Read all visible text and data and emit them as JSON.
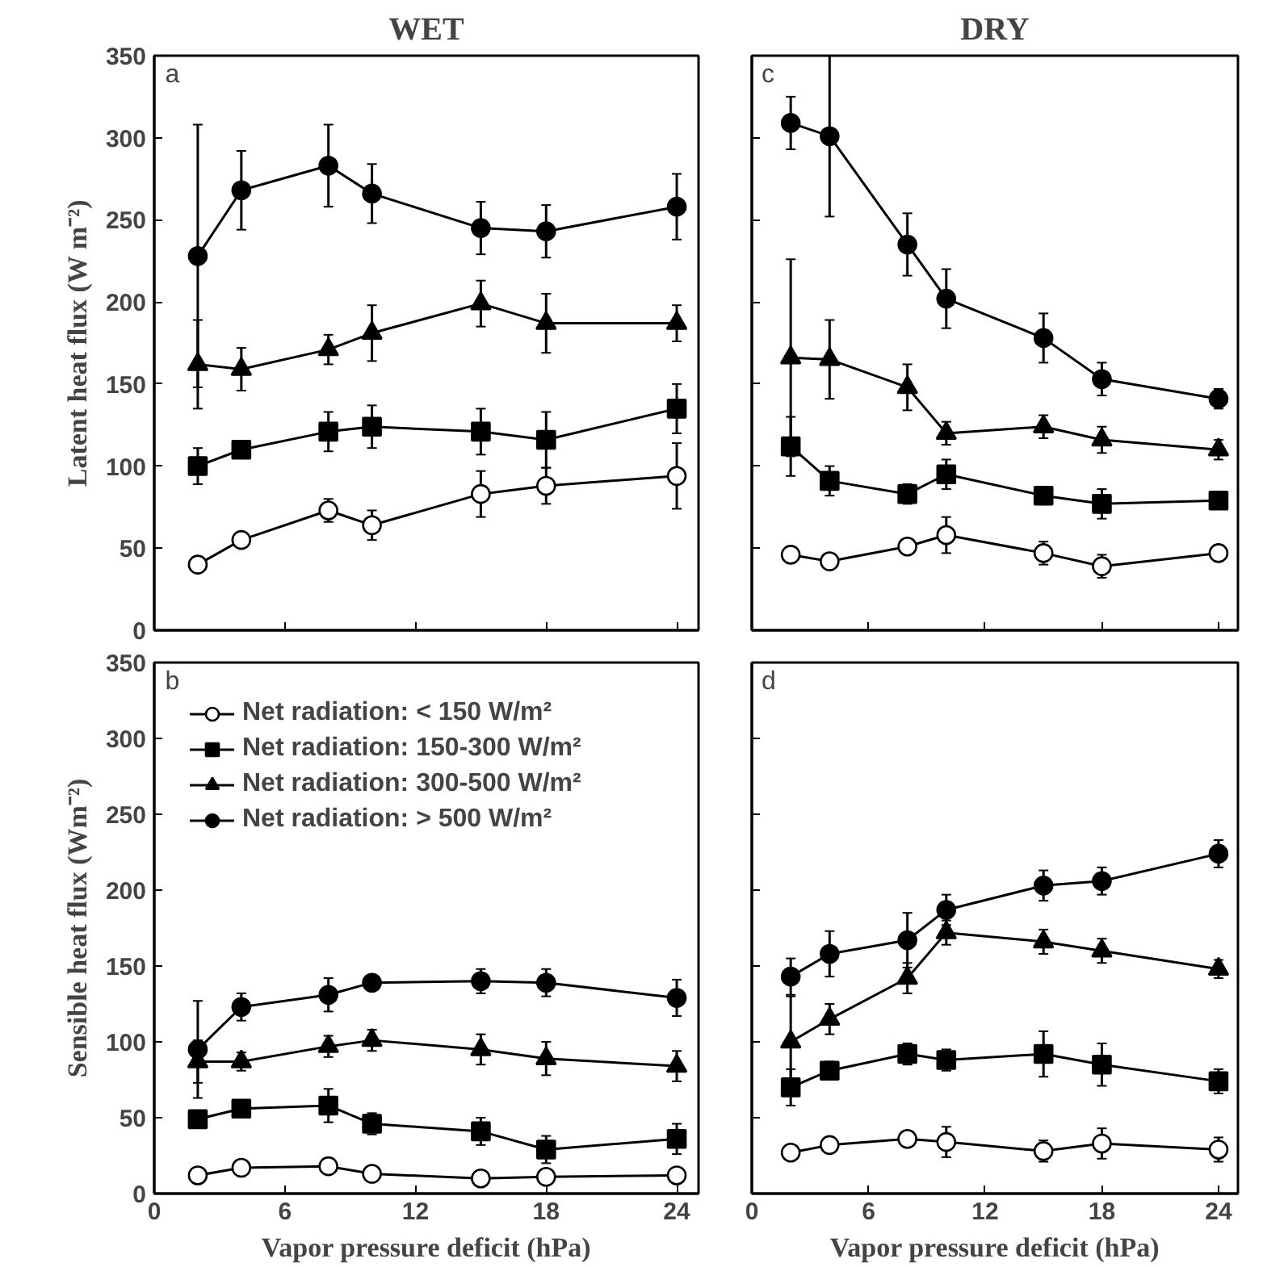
{
  "chart_data": [
    {
      "type": "line",
      "title": "WET",
      "ylabel": "Latent heat flux (W m⁻²)",
      "annotations": [
        "a"
      ],
      "xlim": [
        0,
        25
      ],
      "xticks": [
        0,
        6,
        12,
        18,
        24
      ],
      "ylim": [
        0,
        350
      ],
      "yticks": [
        0,
        50,
        100,
        150,
        200,
        250,
        300,
        350
      ],
      "tick_labels": "y",
      "grid": false,
      "legend": false,
      "series": [
        {
          "color": "#ffffff",
          "marker": "circle",
          "x": [
            2,
            4,
            8,
            10,
            15,
            18,
            24
          ],
          "values": [
            40,
            55,
            73,
            64,
            83,
            88,
            94
          ],
          "errors": [
            3,
            3,
            7,
            9,
            14,
            11,
            20
          ]
        },
        {
          "color": "#000000",
          "marker": "square",
          "x": [
            2,
            4,
            8,
            10,
            15,
            18,
            24
          ],
          "values": [
            100,
            110,
            121,
            124,
            121,
            116,
            135
          ],
          "errors": [
            11,
            5,
            12,
            13,
            14,
            17,
            15
          ]
        },
        {
          "color": "#000000",
          "marker": "triangle",
          "x": [
            2,
            4,
            8,
            10,
            15,
            18,
            24
          ],
          "values": [
            162,
            159,
            171,
            181,
            199,
            187,
            187
          ],
          "errors": [
            27,
            13,
            9,
            17,
            14,
            18,
            11
          ]
        },
        {
          "color": "#000000",
          "marker": "circle",
          "x": [
            2,
            4,
            8,
            10,
            15,
            18,
            24
          ],
          "values": [
            228,
            268,
            283,
            266,
            245,
            243,
            258
          ],
          "errors": [
            80,
            24,
            25,
            18,
            16,
            16,
            20
          ]
        }
      ]
    },
    {
      "type": "line",
      "title": "DRY",
      "annotations": [
        "c"
      ],
      "xlim": [
        0,
        25
      ],
      "xticks": [
        0,
        6,
        12,
        18,
        24
      ],
      "ylim": [
        0,
        350
      ],
      "yticks": [
        0,
        50,
        100,
        150,
        200,
        250,
        300,
        350
      ],
      "tick_labels": false,
      "grid": false,
      "legend": false,
      "series": [
        {
          "color": "#ffffff",
          "marker": "circle",
          "x": [
            2,
            4,
            8,
            10,
            15,
            18,
            24
          ],
          "values": [
            46,
            42,
            51,
            58,
            47,
            39,
            47
          ],
          "errors": [
            5,
            4,
            3,
            11,
            7,
            7,
            5
          ]
        },
        {
          "color": "#000000",
          "marker": "square",
          "x": [
            2,
            4,
            8,
            10,
            15,
            18,
            24
          ],
          "values": [
            112,
            91,
            83,
            95,
            82,
            77,
            79
          ],
          "errors": [
            18,
            9,
            6,
            9,
            5,
            9,
            5
          ]
        },
        {
          "color": "#000000",
          "marker": "triangle",
          "x": [
            2,
            4,
            8,
            10,
            15,
            18,
            24
          ],
          "values": [
            166,
            165,
            148,
            120,
            124,
            116,
            110
          ],
          "errors": [
            60,
            24,
            14,
            7,
            7,
            8,
            6
          ]
        },
        {
          "color": "#000000",
          "marker": "circle",
          "x": [
            2,
            4,
            8,
            10,
            15,
            18,
            24
          ],
          "values": [
            309,
            301,
            235,
            202,
            178,
            153,
            141
          ],
          "errors": [
            16,
            49,
            19,
            18,
            15,
            10,
            6
          ]
        }
      ]
    },
    {
      "type": "line",
      "xlabel": "Vapor pressure deficit (hPa)",
      "ylabel": "Sensible heat flux (Wm⁻²)",
      "annotations": [
        "b"
      ],
      "xlim": [
        0,
        25
      ],
      "xticks": [
        0,
        6,
        12,
        18,
        24
      ],
      "ylim": [
        0,
        350
      ],
      "yticks": [
        0,
        50,
        100,
        150,
        200,
        250,
        300,
        350
      ],
      "grid": false,
      "legend": "top left",
      "series": [
        {
          "name": "Net radiation: < 150 W/m²",
          "color": "#ffffff",
          "marker": "circle",
          "x": [
            2,
            4,
            8,
            10,
            15,
            18,
            24
          ],
          "values": [
            12,
            17,
            18,
            13,
            10,
            11,
            12
          ],
          "errors": [
            4,
            4,
            3,
            3,
            null,
            null,
            null
          ]
        },
        {
          "name": "Net radiation: 150-300 W/m²",
          "color": "#000000",
          "marker": "square",
          "x": [
            2,
            4,
            8,
            10,
            15,
            18,
            24
          ],
          "values": [
            49,
            56,
            58,
            46,
            41,
            29,
            36
          ],
          "errors": [
            4,
            3,
            11,
            7,
            9,
            9,
            10
          ]
        },
        {
          "name": "Net radiation: 300-500 W/m²",
          "color": "#000000",
          "marker": "triangle",
          "x": [
            2,
            4,
            8,
            10,
            15,
            18,
            24
          ],
          "values": [
            87,
            87,
            97,
            101,
            95,
            89,
            84
          ],
          "errors": [
            14,
            6,
            7,
            7,
            10,
            11,
            10
          ]
        },
        {
          "name": "Net radiation: > 500 W/m²",
          "color": "#000000",
          "marker": "circle",
          "x": [
            2,
            4,
            8,
            10,
            15,
            18,
            24
          ],
          "values": [
            95,
            123,
            131,
            139,
            140,
            139,
            129
          ],
          "errors": [
            32,
            9,
            11,
            5,
            8,
            9,
            12
          ]
        }
      ]
    },
    {
      "type": "line",
      "xlabel": "Vapor pressure deficit (hPa)",
      "annotations": [
        "d"
      ],
      "xlim": [
        0,
        25
      ],
      "xticks": [
        0,
        6,
        12,
        18,
        24
      ],
      "ylim": [
        0,
        350
      ],
      "yticks": [
        0,
        50,
        100,
        150,
        200,
        250,
        300,
        350
      ],
      "tick_labels": "x",
      "grid": false,
      "legend": false,
      "series": [
        {
          "color": "#ffffff",
          "marker": "circle",
          "x": [
            2,
            4,
            8,
            10,
            15,
            18,
            24
          ],
          "values": [
            27,
            32,
            36,
            34,
            28,
            33,
            29
          ],
          "errors": [
            3,
            4,
            3,
            10,
            7,
            10,
            8
          ]
        },
        {
          "color": "#000000",
          "marker": "square",
          "x": [
            2,
            4,
            8,
            10,
            15,
            18,
            24
          ],
          "values": [
            70,
            81,
            92,
            88,
            92,
            85,
            74
          ],
          "errors": [
            12,
            6,
            7,
            7,
            15,
            14,
            8
          ]
        },
        {
          "color": "#000000",
          "marker": "triangle",
          "x": [
            2,
            4,
            8,
            10,
            15,
            18,
            24
          ],
          "values": [
            100,
            115,
            142,
            172,
            166,
            160,
            148
          ],
          "errors": [
            30,
            10,
            10,
            8,
            8,
            8,
            6
          ]
        },
        {
          "color": "#000000",
          "marker": "circle",
          "x": [
            2,
            4,
            8,
            10,
            15,
            18,
            24
          ],
          "values": [
            143,
            158,
            167,
            187,
            203,
            206,
            224
          ],
          "errors": [
            12,
            15,
            18,
            10,
            10,
            9,
            9
          ]
        }
      ]
    }
  ]
}
